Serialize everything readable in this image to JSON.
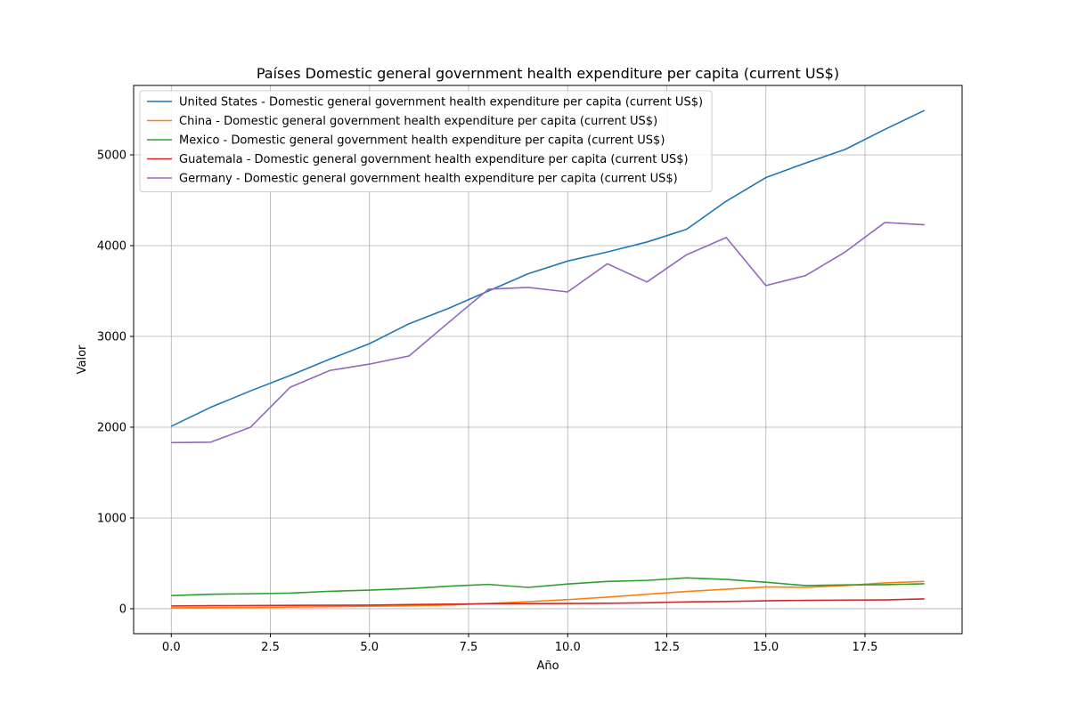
{
  "chart_data": {
    "type": "line",
    "title": "Países Domestic general government health expenditure per capita (current US$)",
    "xlabel": "Año",
    "ylabel": "Valor",
    "xlim": [
      -0.95,
      19.95
    ],
    "ylim": [
      -275,
      5765
    ],
    "xticks": [
      0.0,
      2.5,
      5.0,
      7.5,
      10.0,
      12.5,
      15.0,
      17.5
    ],
    "xtick_labels": [
      "0.0",
      "2.5",
      "5.0",
      "7.5",
      "10.0",
      "12.5",
      "15.0",
      "17.5"
    ],
    "yticks": [
      0,
      1000,
      2000,
      3000,
      4000,
      5000
    ],
    "ytick_labels": [
      "0",
      "1000",
      "2000",
      "3000",
      "4000",
      "5000"
    ],
    "grid": true,
    "legend_position": "top-left",
    "x": [
      0,
      1,
      2,
      3,
      4,
      5,
      6,
      7,
      8,
      9,
      10,
      11,
      12,
      13,
      14,
      15,
      16,
      17,
      18,
      19
    ],
    "series": [
      {
        "name": "United States - Domestic general government health expenditure per capita (current US$)",
        "color": "#1f77b4",
        "values": [
          2010,
          2220,
          2400,
          2570,
          2750,
          2920,
          3140,
          3310,
          3500,
          3690,
          3830,
          3930,
          4040,
          4180,
          4490,
          4750,
          4910,
          5060,
          5280,
          5490
        ]
      },
      {
        "name": "China - Domestic general government health expenditure per capita (current US$)",
        "color": "#ff7f0e",
        "values": [
          10,
          12,
          15,
          18,
          22,
          27,
          32,
          40,
          58,
          78,
          100,
          128,
          160,
          190,
          215,
          240,
          235,
          255,
          285,
          300
        ]
      },
      {
        "name": "Mexico - Domestic general government health expenditure per capita (current US$)",
        "color": "#2ca02c",
        "values": [
          145,
          160,
          165,
          172,
          192,
          205,
          222,
          248,
          268,
          235,
          272,
          300,
          312,
          340,
          322,
          292,
          255,
          262,
          265,
          275
        ]
      },
      {
        "name": "Guatemala - Domestic general government health expenditure per capita (current US$)",
        "color": "#d62728",
        "values": [
          30,
          33,
          35,
          37,
          38,
          40,
          45,
          50,
          55,
          57,
          58,
          60,
          65,
          75,
          80,
          87,
          92,
          95,
          97,
          108
        ]
      },
      {
        "name": "Germany - Domestic general government health expenditure per capita (current US$)",
        "color": "#9467bd",
        "values": [
          1830,
          1835,
          2000,
          2440,
          2625,
          2695,
          2785,
          3155,
          3520,
          3540,
          3490,
          3800,
          3600,
          3900,
          4090,
          3560,
          3670,
          3930,
          4255,
          4230
        ]
      }
    ]
  }
}
